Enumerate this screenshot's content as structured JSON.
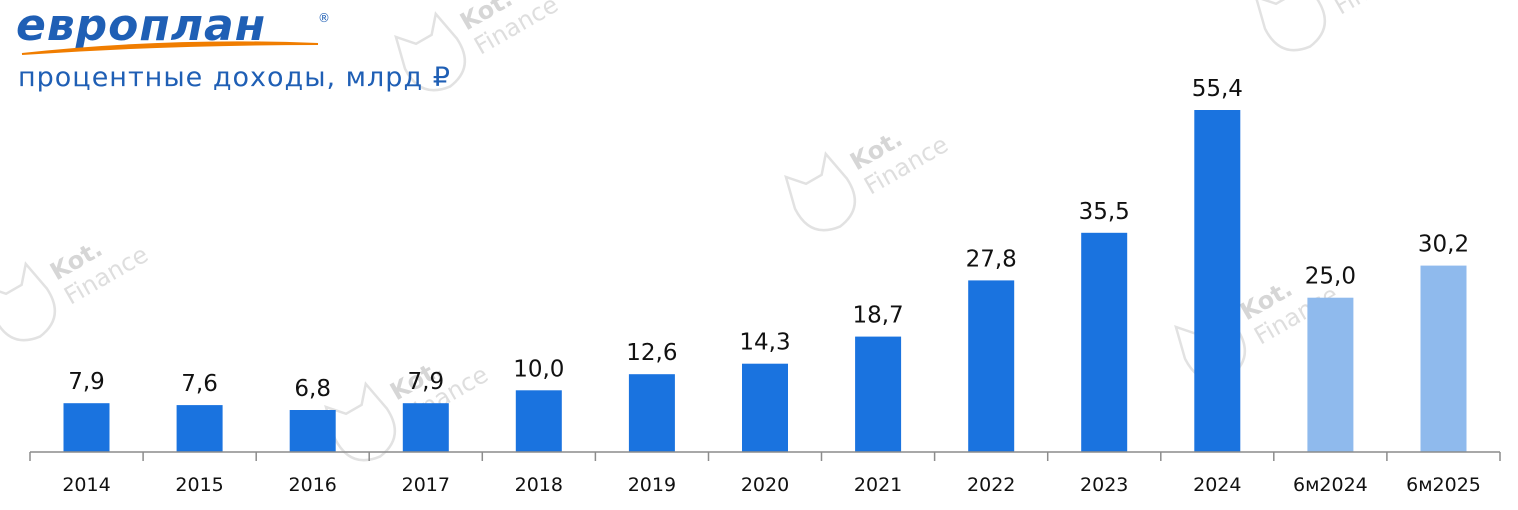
{
  "brand": {
    "logo_text": "европлан",
    "registered_mark": "®",
    "accent_color": "#1f5fb5",
    "swoosh_color": "#f07d00"
  },
  "watermark": {
    "line1": "Kot.",
    "line2": "Finance"
  },
  "chart_data": {
    "type": "bar",
    "title": "процентные доходы, млрд ₽",
    "xlabel": "",
    "ylabel": "",
    "ylim": [
      0,
      60
    ],
    "grid": false,
    "categories": [
      "2014",
      "2015",
      "2016",
      "2017",
      "2018",
      "2019",
      "2020",
      "2021",
      "2022",
      "2023",
      "2024",
      "6м2024",
      "6м2025"
    ],
    "values": [
      7.9,
      7.6,
      6.8,
      7.9,
      10.0,
      12.6,
      14.3,
      18.7,
      27.8,
      35.5,
      55.4,
      25.0,
      30.2
    ],
    "value_labels": [
      "7,9",
      "7,6",
      "6,8",
      "7,9",
      "10,0",
      "12,6",
      "14,3",
      "18,7",
      "27,8",
      "35,5",
      "55,4",
      "25,0",
      "30,2"
    ],
    "bar_colors": [
      "#1a73df",
      "#1a73df",
      "#1a73df",
      "#1a73df",
      "#1a73df",
      "#1a73df",
      "#1a73df",
      "#1a73df",
      "#1a73df",
      "#1a73df",
      "#1a73df",
      "#8fbaed",
      "#8fbaed"
    ],
    "axis_color": "#8c8c8c"
  }
}
